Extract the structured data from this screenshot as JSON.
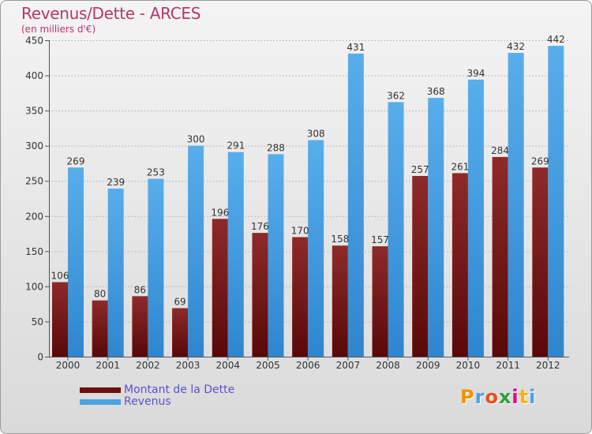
{
  "header": {
    "title": "Revenus/Dette - ARCES",
    "subtitle": "(en milliers d'€)"
  },
  "legend": {
    "dette_label": "Montant de la Dette",
    "revenus_label": "Revenus"
  },
  "logo": {
    "text": "Proxiti"
  },
  "colors": {
    "dette": "#6b0f0f",
    "dette_light": "#8e2a2a",
    "revenus": "#4aa3e5",
    "revenus_dark": "#2f86cf",
    "title": "#b5376a",
    "legend_text": "#5a53cc"
  },
  "chart_data": {
    "type": "bar",
    "title": "Revenus/Dette - ARCES",
    "subtitle": "(en milliers d'€)",
    "xlabel": "",
    "ylabel": "",
    "ylim": [
      0,
      450
    ],
    "yticks": [
      0,
      50,
      100,
      150,
      200,
      250,
      300,
      350,
      400,
      450
    ],
    "grid": true,
    "legend_position": "bottom-left",
    "categories": [
      "2000",
      "2001",
      "2002",
      "2003",
      "2004",
      "2005",
      "2006",
      "2007",
      "2008",
      "2009",
      "2010",
      "2011",
      "2012"
    ],
    "series": [
      {
        "name": "Montant de la Dette",
        "values": [
          106,
          80,
          86,
          69,
          196,
          176,
          170,
          158,
          157,
          257,
          261,
          284,
          269
        ]
      },
      {
        "name": "Revenus",
        "values": [
          269,
          239,
          253,
          300,
          291,
          288,
          308,
          431,
          362,
          368,
          394,
          432,
          442
        ]
      }
    ]
  }
}
